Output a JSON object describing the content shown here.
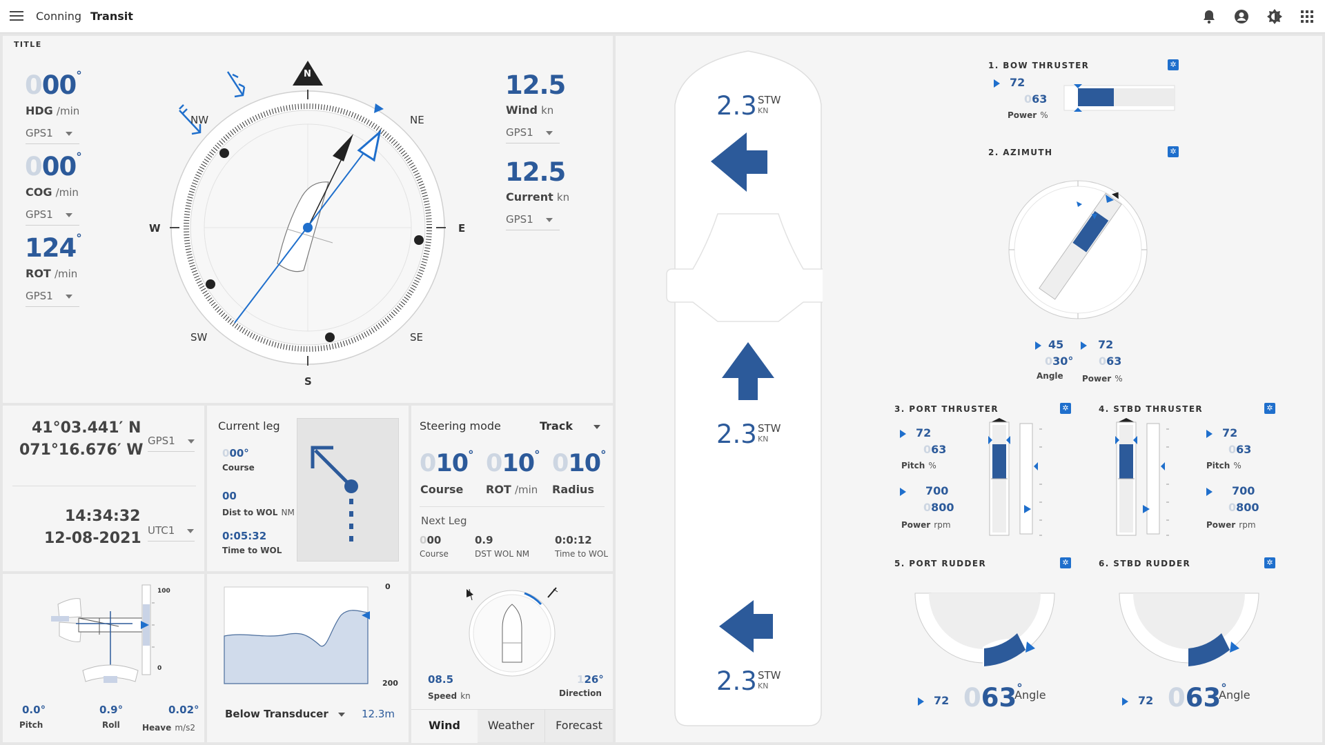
{
  "header": {
    "app": "Conning",
    "page": "Transit"
  },
  "compass_panel": {
    "title": "TITLE",
    "hdg": {
      "dim": "0",
      "value": "00",
      "deg": "°",
      "label": "HDG",
      "unit": "/min",
      "source": "GPS1"
    },
    "cog": {
      "dim": "0",
      "value": "00",
      "deg": "°",
      "label": "COG",
      "unit": "/min",
      "source": "GPS1"
    },
    "rot": {
      "value": "124",
      "deg": "°",
      "label": "ROT",
      "unit": "/min",
      "source": "GPS1"
    },
    "wind": {
      "value": "12.5",
      "label": "Wind",
      "unit": "kn",
      "source": "GPS1"
    },
    "current": {
      "value": "12.5",
      "label": "Current",
      "unit": "kn",
      "source": "GPS1"
    },
    "cardinals": {
      "n": "N",
      "ne": "NE",
      "e": "E",
      "se": "SE",
      "s": "S",
      "sw": "SW",
      "w": "W",
      "nw": "NW"
    }
  },
  "position": {
    "lat": "41°03.441′ N",
    "lon": "071°16.676′ W",
    "pos_source": "GPS1",
    "time": "14:34:32",
    "date": "12-08-2021",
    "time_source": "UTC1"
  },
  "current_leg": {
    "title": "Current leg",
    "course_dim": "0",
    "course": "00°",
    "course_label": "Course",
    "dist": "00",
    "dist_label": "Dist to WOL",
    "dist_unit": "NM",
    "time": "0:05:32",
    "time_label": "Time to WOL"
  },
  "steering": {
    "title": "Steering mode",
    "mode": "Track",
    "course": {
      "dim": "0",
      "value": "10",
      "deg": "°",
      "label": "Course"
    },
    "rot": {
      "dim": "0",
      "value": "10",
      "deg": "°",
      "label": "ROT",
      "unit": "/min"
    },
    "radius": {
      "dim": "0",
      "value": "10",
      "deg": "°",
      "label": "Radius"
    },
    "next_leg": "Next Leg",
    "nl_course_dim": "0",
    "nl_course": "00",
    "nl_course_label": "Course",
    "nl_dst": "0.9",
    "nl_dst_label": "DST WOL NM",
    "nl_time": "0:0:12",
    "nl_time_label": "Time to WOL"
  },
  "attitude": {
    "scale_top": "100",
    "scale_bottom": "0",
    "pitch": "0.0°",
    "pitch_label": "Pitch",
    "roll": "0.9°",
    "roll_label": "Roll",
    "heave": "0.02°",
    "heave_label": "Heave",
    "heave_unit": "m/s2"
  },
  "depth": {
    "scale_top": "0",
    "scale_bottom": "200",
    "label": "Below Transducer",
    "value": "12.3",
    "unit": "m"
  },
  "wind_panel": {
    "speed": "08.5",
    "speed_label": "Speed",
    "speed_unit": "kn",
    "dir_dim": "1",
    "dir": "26°",
    "dir_label": "Direction",
    "tabs": [
      "Wind",
      "Weather",
      "Forecast"
    ]
  },
  "ship": {
    "stw_fwd": "2.3",
    "stw_mid": "2.3",
    "stw_aft": "2.3",
    "stw_label": "STW",
    "stw_unit": "KN"
  },
  "bow_thruster": {
    "title": "1. BOW THRUSTER",
    "set": "72",
    "act_dim": "0",
    "act": "63",
    "label": "Power",
    "unit": "%"
  },
  "azimuth": {
    "title": "2. AZIMUTH",
    "angle_set": "45",
    "angle_dim": "0",
    "angle_act": "30°",
    "angle_label": "Angle",
    "power_set": "72",
    "power_dim": "0",
    "power_act": "63",
    "power_label": "Power",
    "power_unit": "%"
  },
  "port_thruster": {
    "title": "3. PORT THRUSTER",
    "pitch_set": "72",
    "pitch_dim": "0",
    "pitch_act": "63",
    "pitch_label": "Pitch",
    "pitch_unit": "%",
    "power_set": "700",
    "power_dim": "0",
    "power_act": "800",
    "power_label": "Power",
    "power_unit": "rpm"
  },
  "stbd_thruster": {
    "title": "4. STBD THRUSTER",
    "pitch_set": "72",
    "pitch_dim": "0",
    "pitch_act": "63",
    "pitch_label": "Pitch",
    "pitch_unit": "%",
    "power_set": "700",
    "power_dim": "0",
    "power_act": "800",
    "power_label": "Power",
    "power_unit": "rpm"
  },
  "port_rudder": {
    "title": "5. PORT RUDDER",
    "set": "72",
    "dim": "0",
    "act": "63",
    "deg": "°",
    "label": "Angle"
  },
  "stbd_rudder": {
    "title": "6. STBD RUDDER",
    "set": "72",
    "dim": "0",
    "act": "63",
    "deg": "°",
    "label": "Angle"
  },
  "colors": {
    "accent": "#1f6fcc",
    "dark_blue": "#2c5a9a",
    "panel": "#f5f5f5"
  },
  "icons": [
    "menu-icon",
    "bell-icon",
    "account-icon",
    "brightness-icon",
    "apps-icon"
  ]
}
